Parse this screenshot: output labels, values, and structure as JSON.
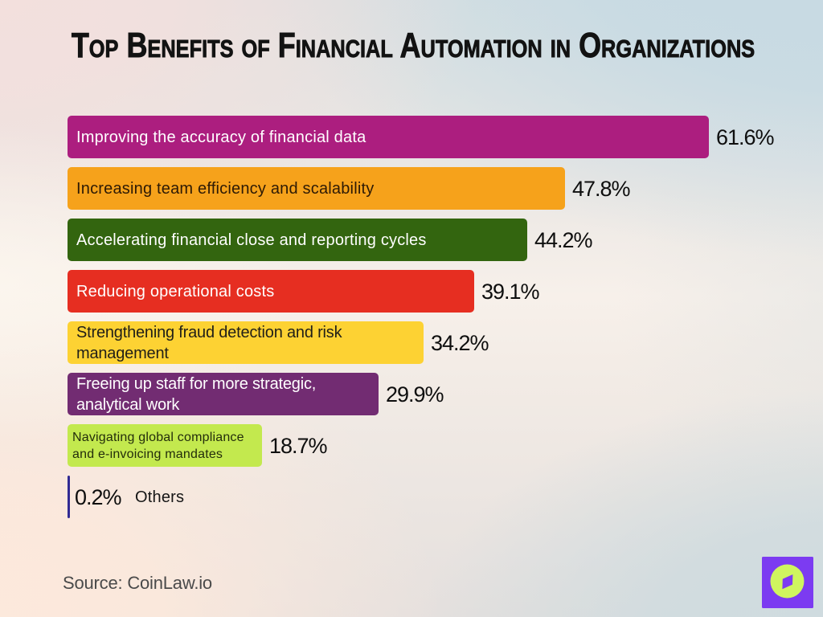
{
  "title": "Top Benefits of Financial Automation in Organizations",
  "source_text": "Source: CoinLaw.io",
  "logo": {
    "icon": "compass-icon",
    "square_color": "#7c3bf1",
    "circle_color": "#cff55f"
  },
  "chart_data": {
    "type": "bar",
    "orientation": "horizontal",
    "title": "Top Benefits of Financial Automation in Organizations",
    "xlabel": "",
    "ylabel": "",
    "unit": "%",
    "xlim": [
      0,
      65
    ],
    "grid": false,
    "legend": null,
    "source": "Source: CoinLaw.io",
    "categories": [
      "Improving the accuracy of financial data",
      "Increasing team efficiency and scalability",
      "Accelerating financial close and reporting cycles",
      "Reducing operational costs",
      "Strengthening fraud detection and risk management",
      "Freeing up staff for more strategic, analytical work",
      "Navigating global compliance and e-invoicing mandates",
      "Others"
    ],
    "values": [
      61.6,
      47.8,
      44.2,
      39.1,
      34.2,
      29.9,
      18.7,
      0.2
    ],
    "value_labels": [
      "61.6%",
      "47.8%",
      "44.2%",
      "39.1%",
      "34.2%",
      "29.9%",
      "18.7%",
      "0.2%"
    ],
    "label_lines": [
      [
        "Improving the accuracy of financial data"
      ],
      [
        "Increasing team efficiency and scalability"
      ],
      [
        "Accelerating financial close and reporting cycles"
      ],
      [
        "Reducing operational costs"
      ],
      [
        "Strengthening fraud detection and risk",
        "management"
      ],
      [
        "Freeing up staff for more strategic,",
        "analytical work"
      ],
      [
        "Navigating global compliance",
        "and e-invoicing mandates"
      ],
      []
    ],
    "bar_colors": [
      "#ac1e7f",
      "#f6a21b",
      "#33650f",
      "#e62e21",
      "#fdd233",
      "#722c72",
      "#c3e94e",
      "#312a93"
    ],
    "label_text_colors": [
      "#ffffff",
      "#2d1a05",
      "#ffffff",
      "#ffffff",
      "#222018",
      "#ffffff",
      "#232d0b",
      "#161616"
    ],
    "small_label_rows": [
      6
    ],
    "outside_label_rows": [
      7
    ]
  }
}
